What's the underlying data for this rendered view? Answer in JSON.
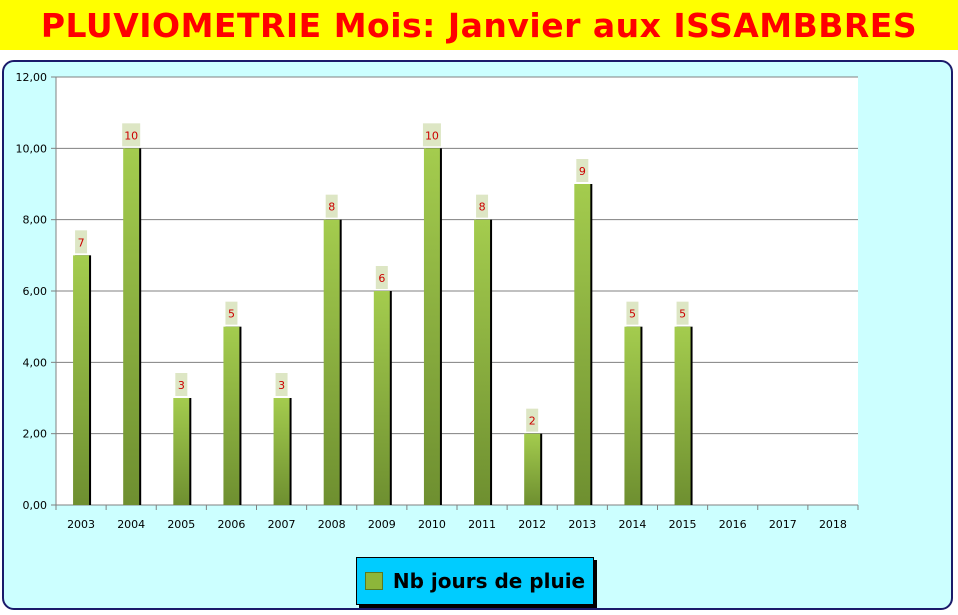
{
  "title": "PLUVIOMETRIE Mois: Janvier aux ISSAMBBRES",
  "chart_data": {
    "type": "bar",
    "categories": [
      "2003",
      "2004",
      "2005",
      "2006",
      "2007",
      "2008",
      "2009",
      "2010",
      "2011",
      "2012",
      "2013",
      "2014",
      "2015",
      "2016",
      "2017",
      "2018"
    ],
    "series": [
      {
        "name": "Nb jours de pluie",
        "values": [
          7,
          10,
          3,
          5,
          3,
          8,
          6,
          10,
          8,
          2,
          9,
          5,
          5,
          null,
          null,
          null
        ]
      }
    ],
    "data_labels": [
      "7",
      "10",
      "3",
      "5",
      "3",
      "8",
      "6",
      "10",
      "8",
      "2",
      "9",
      "5",
      "5",
      "",
      "",
      ""
    ],
    "ylim": [
      0,
      12
    ],
    "yticks": [
      0,
      2,
      4,
      6,
      8,
      10,
      12
    ],
    "ytick_labels": [
      "0,00",
      "2,00",
      "4,00",
      "6,00",
      "8,00",
      "10,00",
      "12,00"
    ],
    "grid": true,
    "legend_position": "bottom-center"
  },
  "legend": {
    "label": "Nb jours de pluie"
  },
  "colors": {
    "title_bg": "#ffff00",
    "title_text": "#ff0000",
    "frame_bg": "#ccffff",
    "plot_bg": "#ffffff",
    "bar_top": "#a4cc4e",
    "bar_bottom": "#6e8f30",
    "data_label_text": "#cc0000",
    "data_label_bg": "#dde6c4",
    "legend_bg": "#00ccff"
  }
}
